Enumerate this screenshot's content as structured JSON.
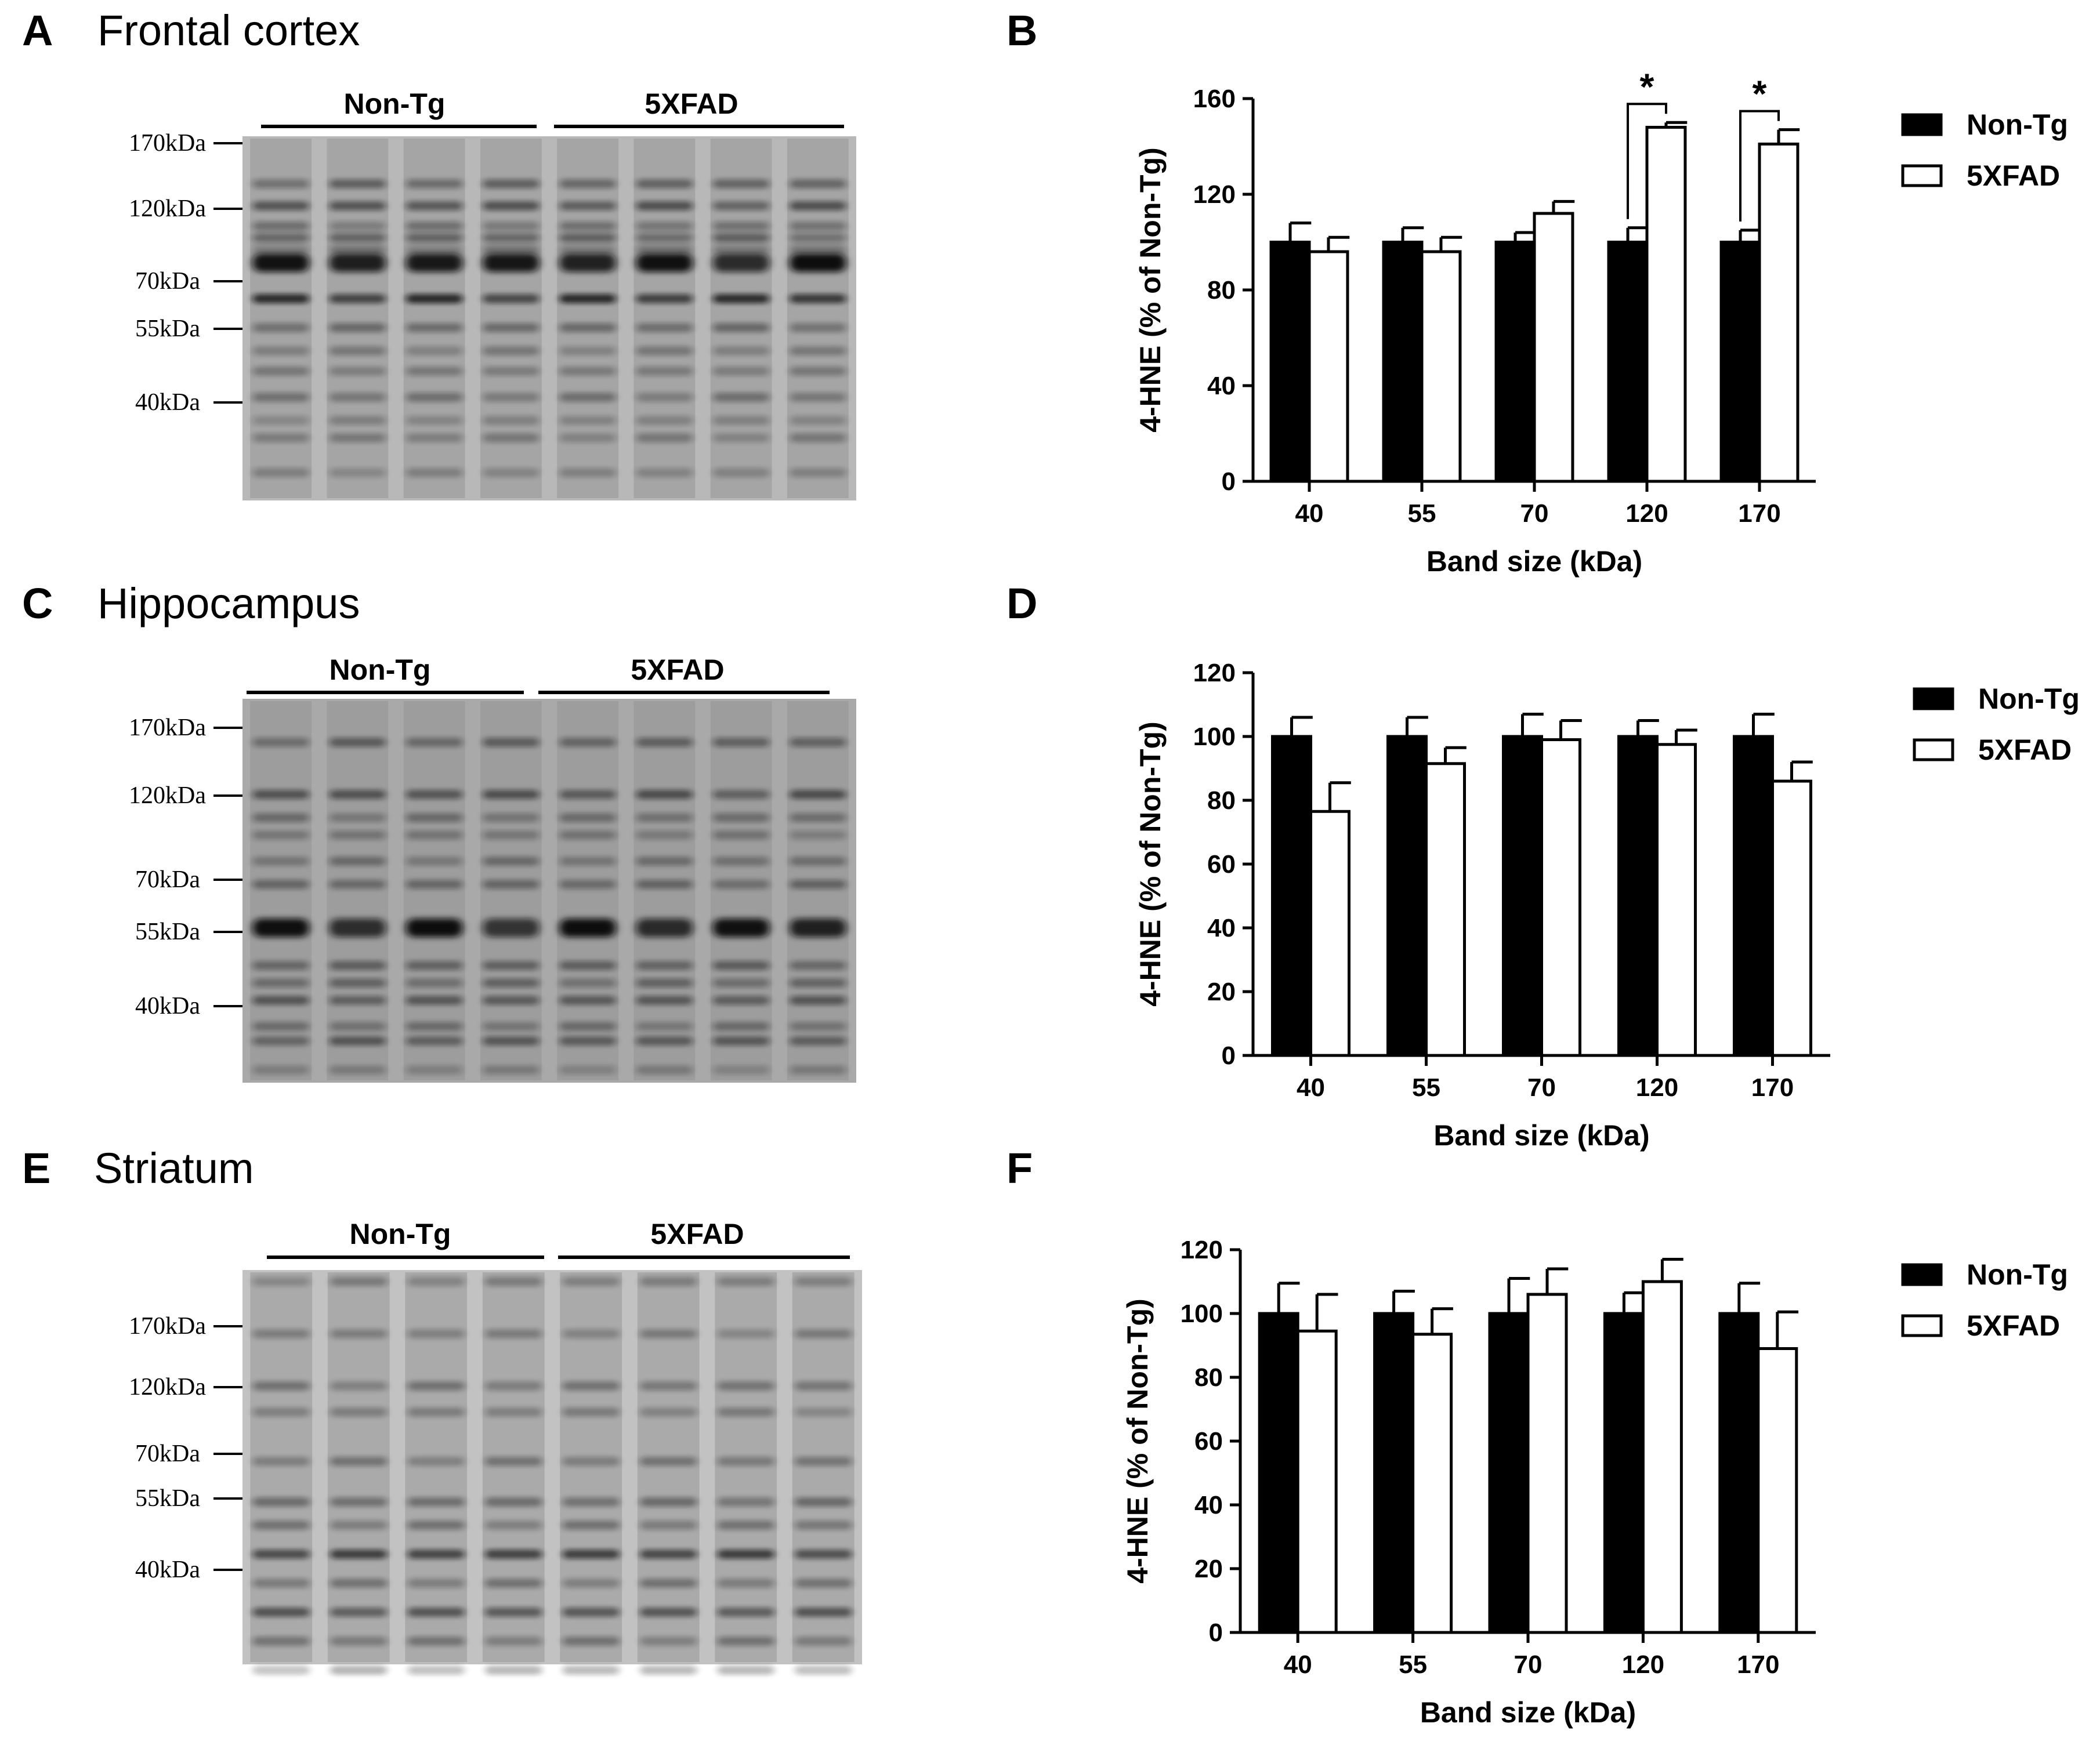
{
  "blots": [
    {
      "letter": "A",
      "title": "Frontal cortex",
      "groups": [
        "Non-Tg",
        "5XFAD"
      ],
      "markers": [
        "170kDa",
        "120kDa",
        "70kDa",
        "55kDa",
        "40kDa"
      ]
    },
    {
      "letter": "C",
      "title": "Hippocampus",
      "groups": [
        "Non-Tg",
        "5XFAD"
      ],
      "markers": [
        "170kDa",
        "120kDa",
        "70kDa",
        "55kDa",
        "40kDa"
      ]
    },
    {
      "letter": "E",
      "title": "Striatum",
      "groups": [
        "Non-Tg",
        "5XFAD"
      ],
      "markers": [
        "170kDa",
        "120kDa",
        "70kDa",
        "55kDa",
        "40kDa"
      ]
    }
  ],
  "chart_data": [
    {
      "letter": "B",
      "type": "bar",
      "categories": [
        "40",
        "55",
        "70",
        "120",
        "170"
      ],
      "xlabel": "Band size (kDa)",
      "ylabel": "4-HNE (% of Non-Tg)",
      "ylim": [
        0,
        160
      ],
      "yticks": [
        0,
        40,
        80,
        120,
        160
      ],
      "series": [
        {
          "name": "Non-Tg",
          "values": [
            100,
            100,
            100,
            100,
            100
          ],
          "errors": [
            8,
            6,
            4,
            6,
            5
          ]
        },
        {
          "name": "5XFAD",
          "values": [
            96,
            96,
            112,
            148,
            141
          ],
          "errors": [
            6,
            6,
            5,
            2,
            6
          ]
        }
      ],
      "significance": [
        {
          "category": "120",
          "label": "*"
        },
        {
          "category": "170",
          "label": "*"
        }
      ],
      "legend": "right",
      "grid": false
    },
    {
      "letter": "D",
      "type": "bar",
      "categories": [
        "40",
        "55",
        "70",
        "120",
        "170"
      ],
      "xlabel": "Band size (kDa)",
      "ylabel": "4-HNE (% of Non-Tg)",
      "ylim": [
        0,
        120
      ],
      "yticks": [
        0,
        20,
        40,
        60,
        80,
        100,
        120
      ],
      "series": [
        {
          "name": "Non-Tg",
          "values": [
            100,
            100,
            100,
            100,
            100
          ],
          "errors": [
            6,
            6,
            7,
            5,
            7
          ]
        },
        {
          "name": "5XFAD",
          "values": [
            76.5,
            91.5,
            99,
            97.5,
            86
          ],
          "errors": [
            9,
            5,
            6,
            4.5,
            6
          ]
        }
      ],
      "significance": [],
      "legend": "right",
      "grid": false
    },
    {
      "letter": "F",
      "type": "bar",
      "categories": [
        "40",
        "55",
        "70",
        "120",
        "170"
      ],
      "xlabel": "Band size (kDa)",
      "ylabel": "4-HNE (% of Non-Tg)",
      "ylim": [
        0,
        120
      ],
      "yticks": [
        0,
        20,
        40,
        60,
        80,
        100,
        120
      ],
      "series": [
        {
          "name": "Non-Tg",
          "values": [
            100,
            100,
            100,
            100,
            100
          ],
          "errors": [
            9.5,
            7,
            11,
            6.5,
            9.5
          ]
        },
        {
          "name": "5XFAD",
          "values": [
            94.5,
            93.5,
            106,
            110,
            89
          ],
          "errors": [
            11.5,
            8,
            8,
            7,
            11.5
          ]
        }
      ],
      "significance": [],
      "legend": "right",
      "grid": false
    }
  ]
}
